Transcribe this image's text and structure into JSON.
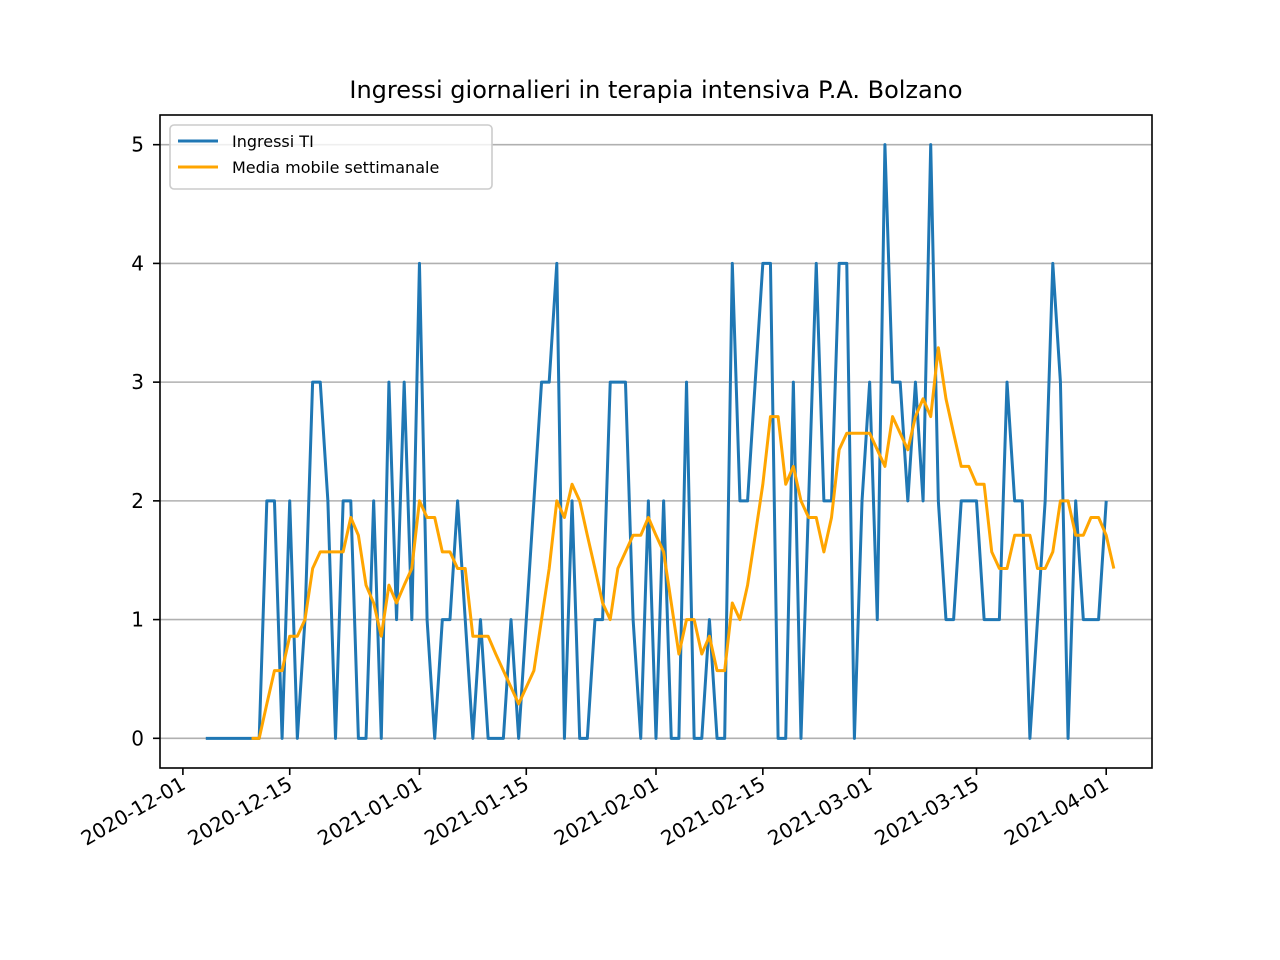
{
  "chart_data": {
    "type": "line",
    "title": "Ingressi giornalieri in terapia intensiva P.A. Bolzano",
    "xlabel": "",
    "ylabel": "",
    "x_start": "2020-12-04",
    "x_end": "2021-04-01",
    "xlim": [
      "2020-11-28",
      "2021-04-07"
    ],
    "ylim": [
      -0.25,
      5.25
    ],
    "x_ticks": [
      "2020-12-01",
      "2020-12-15",
      "2021-01-01",
      "2021-01-15",
      "2021-02-01",
      "2021-02-15",
      "2021-03-01",
      "2021-03-15",
      "2021-04-01"
    ],
    "y_ticks": [
      0,
      1,
      2,
      3,
      4,
      5
    ],
    "y_grid": true,
    "x_grid": false,
    "legend_position": "top-left",
    "series": [
      {
        "name": "Ingressi TI",
        "color": "#1f77b4",
        "values": [
          0,
          0,
          0,
          0,
          0,
          0,
          0,
          0,
          2,
          2,
          0,
          2,
          0,
          1,
          3,
          3,
          2,
          0,
          2,
          2,
          0,
          0,
          2,
          0,
          3,
          1,
          3,
          1,
          4,
          1,
          0,
          1,
          1,
          2,
          1,
          0,
          1,
          0,
          0,
          0,
          1,
          0,
          1,
          2,
          3,
          3,
          4,
          0,
          2,
          0,
          0,
          1,
          1,
          3,
          3,
          3,
          1,
          0,
          2,
          0,
          2,
          0,
          0,
          3,
          0,
          0,
          1,
          0,
          0,
          4,
          2,
          2,
          3,
          4,
          4,
          0,
          0,
          3,
          0,
          2,
          4,
          2,
          2,
          4,
          4,
          0,
          2,
          3,
          1,
          5,
          3,
          3,
          2,
          3,
          2,
          5,
          2,
          1,
          1,
          2,
          2,
          2,
          1,
          1,
          1,
          3,
          2,
          2,
          0,
          1,
          2,
          4,
          3,
          0,
          2,
          1,
          1,
          1,
          2
        ]
      },
      {
        "name": "Media mobile settimanale",
        "color": "#ffa500",
        "values": [
          null,
          null,
          null,
          null,
          null,
          null,
          0,
          0,
          0.29,
          0.57,
          0.57,
          0.86,
          0.86,
          1,
          1.43,
          1.57,
          1.57,
          1.57,
          1.57,
          1.86,
          1.71,
          1.29,
          1.14,
          0.86,
          1.29,
          1.14,
          1.29,
          1.43,
          2,
          1.86,
          1.86,
          1.57,
          1.57,
          1.43,
          1.43,
          0.86,
          0.86,
          0.86,
          0.71,
          0.57,
          0.43,
          0.29,
          0.43,
          0.57,
          1,
          1.43,
          2,
          1.86,
          2.14,
          2,
          1.71,
          1.43,
          1.14,
          1,
          1.43,
          1.57,
          1.71,
          1.71,
          1.86,
          1.71,
          1.57,
          1.14,
          0.71,
          1,
          1,
          0.71,
          0.86,
          0.57,
          0.57,
          1.14,
          1,
          1.29,
          1.71,
          2.14,
          2.71,
          2.71,
          2.14,
          2.29,
          2,
          1.86,
          1.86,
          1.57,
          1.86,
          2.43,
          2.57,
          2.57,
          2.57,
          2.57,
          2.43,
          2.29,
          2.71,
          2.57,
          2.43,
          2.71,
          2.86,
          2.71,
          3.29,
          2.86,
          2.57,
          2.29,
          2.29,
          2.14,
          2.14,
          1.57,
          1.43,
          1.43,
          1.71,
          1.71,
          1.71,
          1.43,
          1.43,
          1.57,
          2,
          2,
          1.71,
          1.71,
          1.86,
          1.86,
          1.71,
          1.43
        ]
      }
    ]
  }
}
